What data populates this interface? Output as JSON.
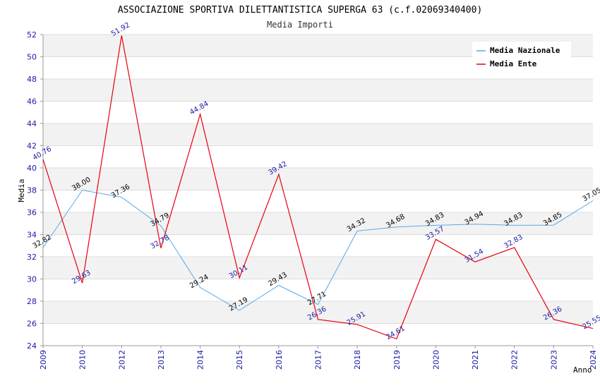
{
  "chart_data": {
    "type": "line",
    "title": "ASSOCIAZIONE SPORTIVA DILETTANTISTICA SUPERGA 63 (c.f.02069340400)",
    "subtitle": "Media Importi",
    "xlabel": "Anno",
    "ylabel": "Media",
    "ylim": [
      24,
      52
    ],
    "yticks": [
      "24",
      "26",
      "28",
      "30",
      "32",
      "34",
      "36",
      "38",
      "40",
      "42",
      "44",
      "46",
      "48",
      "50",
      "52"
    ],
    "x": [
      "2009",
      "2010",
      "2012",
      "2013",
      "2014",
      "2015",
      "2016",
      "2017",
      "2018",
      "2019",
      "2020",
      "2021",
      "2022",
      "2023",
      "2024"
    ],
    "grid": true,
    "legend_position": "top-right",
    "series": [
      {
        "name": "Media Nazionale",
        "color": "#5aa7e6",
        "values": [
          32.82,
          38.0,
          37.36,
          34.79,
          29.24,
          27.19,
          29.43,
          27.71,
          34.32,
          34.68,
          34.83,
          34.94,
          34.83,
          34.85,
          37.05
        ],
        "labels": [
          "32.82",
          "38.00",
          "37.36",
          "34.79",
          "29.24",
          "27.19",
          "29.43",
          "27.71",
          "34.32",
          "34.68",
          "34.83",
          "34.94",
          "34.83",
          "34.85",
          "37.05"
        ]
      },
      {
        "name": "Media Ente",
        "color": "#e8000b",
        "values": [
          40.76,
          29.63,
          51.92,
          32.78,
          44.84,
          30.11,
          39.42,
          26.36,
          25.91,
          24.61,
          33.57,
          31.54,
          32.83,
          26.36,
          25.55
        ],
        "labels": [
          "40.76",
          "29.63",
          "51.92",
          "32.78",
          "44.84",
          "30.11",
          "39.42",
          "26.36",
          "25.91",
          "24.61",
          "33.57",
          "31.54",
          "32.83",
          "26.36",
          "25.55"
        ]
      }
    ]
  }
}
